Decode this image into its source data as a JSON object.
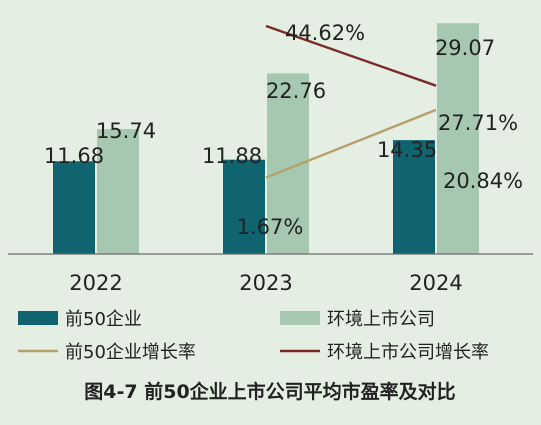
{
  "colors": {
    "background": "#e4eee2",
    "top50_bar": "#0f6470",
    "env_bar": "#a6c8b1",
    "top50_growth_line": "#b8a06a",
    "env_growth_line": "#7a2a2a",
    "text": "#222222"
  },
  "chart_data": {
    "type": "bar",
    "caption": "图4-7 前50企业上市公司平均市盈率及对比",
    "categories": [
      "2022",
      "2023",
      "2024"
    ],
    "series": [
      {
        "name": "前50企业",
        "kind": "bar",
        "values": [
          11.68,
          11.88,
          14.35
        ],
        "labels": [
          "11.68",
          "11.88",
          "14.35"
        ]
      },
      {
        "name": "环境上市公司",
        "kind": "bar",
        "values": [
          15.74,
          22.76,
          29.07
        ],
        "labels": [
          "15.74",
          "22.76",
          "29.07"
        ]
      },
      {
        "name": "前50企业增长率",
        "kind": "line",
        "x": [
          "2023",
          "2024"
        ],
        "values": [
          1.67,
          20.84
        ],
        "labels": [
          "1.67%",
          "20.84%"
        ]
      },
      {
        "name": "环境上市公司增长率",
        "kind": "line",
        "x": [
          "2023",
          "2024"
        ],
        "values": [
          44.62,
          27.71
        ],
        "labels": [
          "44.62%",
          "27.71%"
        ]
      }
    ],
    "bar_ylim": [
      0,
      32
    ],
    "line_ylim": [
      -20,
      52
    ],
    "legend_position": "bottom",
    "grid": false
  }
}
